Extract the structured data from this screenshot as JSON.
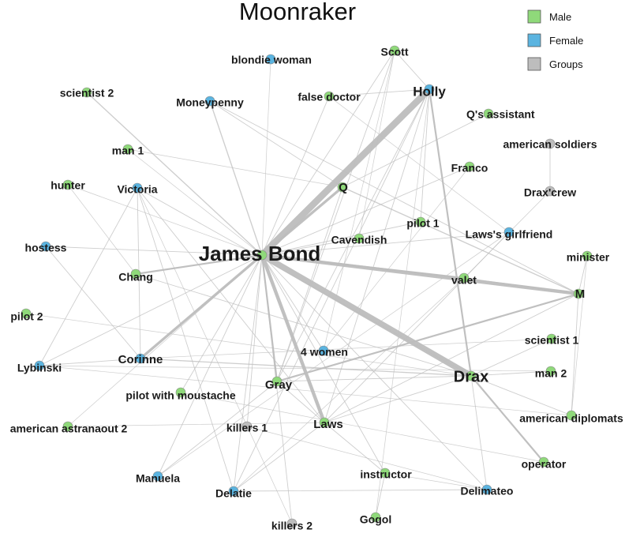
{
  "title": "Moonraker",
  "colors": {
    "Male": "#8fd97a",
    "Female": "#5bb4e0",
    "Groups": "#bdbdbd"
  },
  "legend": [
    {
      "label": "Male",
      "type": "Male"
    },
    {
      "label": "Female",
      "type": "Female"
    },
    {
      "label": "Groups",
      "type": "Groups"
    }
  ],
  "nodes": [
    {
      "id": "bond",
      "label": "James Bond",
      "type": "Male"
    },
    {
      "id": "holly",
      "label": "Holly",
      "type": "Female"
    },
    {
      "id": "drax",
      "label": "Drax",
      "type": "Male"
    },
    {
      "id": "m",
      "label": "M",
      "type": "Male"
    },
    {
      "id": "q",
      "label": "Q",
      "type": "Male"
    },
    {
      "id": "laws",
      "label": "Laws",
      "type": "Male"
    },
    {
      "id": "gray",
      "label": "Gray",
      "type": "Male"
    },
    {
      "id": "corinne",
      "label": "Corinne",
      "type": "Female"
    },
    {
      "id": "scott",
      "label": "Scott",
      "type": "Male"
    },
    {
      "id": "blondie",
      "label": "blondie woman",
      "type": "Female"
    },
    {
      "id": "falsedoc",
      "label": "false doctor",
      "type": "Male"
    },
    {
      "id": "scientist2",
      "label": "scientist 2",
      "type": "Male"
    },
    {
      "id": "moneypenny",
      "label": "Moneypenny",
      "type": "Female"
    },
    {
      "id": "qassist",
      "label": "Q's assistant",
      "type": "Male"
    },
    {
      "id": "amsoldiers",
      "label": "american soldiers",
      "type": "Groups"
    },
    {
      "id": "man1",
      "label": "man 1",
      "type": "Male"
    },
    {
      "id": "franco",
      "label": "Franco",
      "type": "Male"
    },
    {
      "id": "hunter",
      "label": "hunter",
      "type": "Male"
    },
    {
      "id": "victoria",
      "label": "Victoria",
      "type": "Female"
    },
    {
      "id": "draxcrew",
      "label": "Drax'crew",
      "type": "Groups"
    },
    {
      "id": "pilot1",
      "label": "pilot 1",
      "type": "Male"
    },
    {
      "id": "lawsgf",
      "label": "Laws's girlfriend",
      "type": "Female"
    },
    {
      "id": "hostess",
      "label": "hostess",
      "type": "Female"
    },
    {
      "id": "cavendish",
      "label": "Cavendish",
      "type": "Male"
    },
    {
      "id": "minister",
      "label": "minister",
      "type": "Male"
    },
    {
      "id": "chang",
      "label": "Chang",
      "type": "Male"
    },
    {
      "id": "valet",
      "label": "valet",
      "type": "Male"
    },
    {
      "id": "pilot2",
      "label": "pilot 2",
      "type": "Male"
    },
    {
      "id": "scientist1",
      "label": "scientist 1",
      "type": "Male"
    },
    {
      "id": "women4",
      "label": "4 women",
      "type": "Female"
    },
    {
      "id": "lybinski",
      "label": "Lybinski",
      "type": "Female"
    },
    {
      "id": "man2",
      "label": "man 2",
      "type": "Male"
    },
    {
      "id": "pilotmoust",
      "label": "pilot with moustache",
      "type": "Male"
    },
    {
      "id": "amdiplomats",
      "label": "american diplomats",
      "type": "Male"
    },
    {
      "id": "amastro",
      "label": "american astranaout 2",
      "type": "Male"
    },
    {
      "id": "killers1",
      "label": "killers 1",
      "type": "Groups"
    },
    {
      "id": "operator",
      "label": "operator",
      "type": "Male"
    },
    {
      "id": "manuela",
      "label": "Manuela",
      "type": "Female"
    },
    {
      "id": "instructor",
      "label": "instructor",
      "type": "Male"
    },
    {
      "id": "delatie",
      "label": "Delatie",
      "type": "Female"
    },
    {
      "id": "delimateo",
      "label": "Delimateo",
      "type": "Female"
    },
    {
      "id": "gogol",
      "label": "Gogol",
      "type": "Male"
    },
    {
      "id": "killers2",
      "label": "killers 2",
      "type": "Groups"
    }
  ],
  "edges": [
    {
      "s": "bond",
      "t": "holly",
      "w": 10
    },
    {
      "s": "bond",
      "t": "drax",
      "w": 9
    },
    {
      "s": "bond",
      "t": "m",
      "w": 4
    },
    {
      "s": "bond",
      "t": "laws",
      "w": 4
    },
    {
      "s": "bond",
      "t": "q",
      "w": 3
    },
    {
      "s": "bond",
      "t": "corinne",
      "w": 3
    },
    {
      "s": "bond",
      "t": "gray",
      "w": 2
    },
    {
      "s": "bond",
      "t": "valet",
      "w": 2
    },
    {
      "s": "bond",
      "t": "chang",
      "w": 2
    },
    {
      "s": "bond",
      "t": "moneypenny",
      "w": 1.5
    },
    {
      "s": "bond",
      "t": "scientist2",
      "w": 1.5
    },
    {
      "s": "bond",
      "t": "scott",
      "w": 1
    },
    {
      "s": "bond",
      "t": "hostess",
      "w": 1
    },
    {
      "s": "bond",
      "t": "lybinski",
      "w": 1
    },
    {
      "s": "bond",
      "t": "manuela",
      "w": 1
    },
    {
      "s": "bond",
      "t": "delatie",
      "w": 1
    },
    {
      "s": "bond",
      "t": "killers2",
      "w": 1
    },
    {
      "s": "bond",
      "t": "killers1",
      "w": 1
    },
    {
      "s": "bond",
      "t": "pilotmoust",
      "w": 1
    },
    {
      "s": "bond",
      "t": "amastro",
      "w": 0.8
    },
    {
      "s": "bond",
      "t": "instructor",
      "w": 1
    },
    {
      "s": "bond",
      "t": "delimateo",
      "w": 1
    },
    {
      "s": "bond",
      "t": "pilot1",
      "w": 1
    },
    {
      "s": "bond",
      "t": "cavendish",
      "w": 1
    },
    {
      "s": "bond",
      "t": "lawsgf",
      "w": 1
    },
    {
      "s": "bond",
      "t": "man1",
      "w": 0.8
    },
    {
      "s": "bond",
      "t": "hunter",
      "w": 0.8
    },
    {
      "s": "bond",
      "t": "women4",
      "w": 1
    },
    {
      "s": "bond",
      "t": "franco",
      "w": 1
    },
    {
      "s": "bond",
      "t": "falsedoc",
      "w": 1
    },
    {
      "s": "bond",
      "t": "blondie",
      "w": 0.8
    },
    {
      "s": "holly",
      "t": "drax",
      "w": 2
    },
    {
      "s": "holly",
      "t": "scott",
      "w": 1
    },
    {
      "s": "holly",
      "t": "falsedoc",
      "w": 1
    },
    {
      "s": "holly",
      "t": "laws",
      "w": 1
    },
    {
      "s": "holly",
      "t": "gray",
      "w": 1
    },
    {
      "s": "holly",
      "t": "delatie",
      "w": 1
    },
    {
      "s": "holly",
      "t": "pilot1",
      "w": 1
    },
    {
      "s": "drax",
      "t": "operator",
      "w": 2
    },
    {
      "s": "drax",
      "t": "corinne",
      "w": 1.5
    },
    {
      "s": "drax",
      "t": "laws",
      "w": 1
    },
    {
      "s": "drax",
      "t": "gray",
      "w": 1
    },
    {
      "s": "drax",
      "t": "victoria",
      "w": 1
    },
    {
      "s": "drax",
      "t": "delimateo",
      "w": 1
    },
    {
      "s": "drax",
      "t": "man2",
      "w": 1
    },
    {
      "s": "drax",
      "t": "scientist1",
      "w": 1
    },
    {
      "s": "drax",
      "t": "chang",
      "w": 1
    },
    {
      "s": "drax",
      "t": "amdiplomats",
      "w": 1
    },
    {
      "s": "drax",
      "t": "pilot2",
      "w": 0.8
    },
    {
      "s": "m",
      "t": "gray",
      "w": 2
    },
    {
      "s": "m",
      "t": "q",
      "w": 1.5
    },
    {
      "s": "m",
      "t": "valet",
      "w": 1.5
    },
    {
      "s": "m",
      "t": "minister",
      "w": 1
    },
    {
      "s": "m",
      "t": "amdiplomats",
      "w": 1
    },
    {
      "s": "m",
      "t": "moneypenny",
      "w": 1
    },
    {
      "s": "m",
      "t": "laws",
      "w": 1
    },
    {
      "s": "q",
      "t": "moneypenny",
      "w": 1
    },
    {
      "s": "q",
      "t": "qassist",
      "w": 1
    },
    {
      "s": "q",
      "t": "gray",
      "w": 1
    },
    {
      "s": "laws",
      "t": "gray",
      "w": 1
    },
    {
      "s": "laws",
      "t": "lawsgf",
      "w": 1
    },
    {
      "s": "laws",
      "t": "victoria",
      "w": 1
    },
    {
      "s": "laws",
      "t": "delatie",
      "w": 1
    },
    {
      "s": "laws",
      "t": "instructor",
      "w": 1
    },
    {
      "s": "gray",
      "t": "manuela",
      "w": 1
    },
    {
      "s": "gray",
      "t": "scott",
      "w": 1
    },
    {
      "s": "corinne",
      "t": "victoria",
      "w": 1
    },
    {
      "s": "corinne",
      "t": "lybinski",
      "w": 1
    },
    {
      "s": "corinne",
      "t": "hostess",
      "w": 1
    },
    {
      "s": "victoria",
      "t": "lybinski",
      "w": 1
    },
    {
      "s": "victoria",
      "t": "delatie",
      "w": 1
    },
    {
      "s": "victoria",
      "t": "killers2",
      "w": 0.8
    },
    {
      "s": "amsoldiers",
      "t": "draxcrew",
      "w": 1
    },
    {
      "s": "draxcrew",
      "t": "valet",
      "w": 0.8
    },
    {
      "s": "delatie",
      "t": "delimateo",
      "w": 1
    },
    {
      "s": "delatie",
      "t": "valet",
      "w": 0.8
    },
    {
      "s": "instructor",
      "t": "gogol",
      "w": 1
    },
    {
      "s": "instructor",
      "t": "delimateo",
      "w": 0.8
    },
    {
      "s": "gogol",
      "t": "holly",
      "w": 0.8
    },
    {
      "s": "scott",
      "t": "women4",
      "w": 0.8
    },
    {
      "s": "scott",
      "t": "cavendish",
      "w": 0.8
    },
    {
      "s": "lybinski",
      "t": "amdiplomats",
      "w": 0.8
    },
    {
      "s": "lybinski",
      "t": "man2",
      "w": 0.8
    },
    {
      "s": "pilotmoust",
      "t": "operator",
      "w": 0.8
    },
    {
      "s": "killers1",
      "t": "delimateo",
      "w": 0.8
    },
    {
      "s": "amastro",
      "t": "laws",
      "w": 0.8
    },
    {
      "s": "manuela",
      "t": "lawsgf",
      "w": 0.8
    },
    {
      "s": "falsedoc",
      "t": "lawsgf",
      "w": 0.8
    },
    {
      "s": "scientist1",
      "t": "corinne",
      "w": 0.8
    },
    {
      "s": "man1",
      "t": "q",
      "w": 0.8
    },
    {
      "s": "hunter",
      "t": "chang",
      "w": 0.8
    },
    {
      "s": "minister",
      "t": "amdiplomats",
      "w": 0.8
    },
    {
      "s": "franco",
      "t": "women4",
      "w": 0.8
    }
  ]
}
